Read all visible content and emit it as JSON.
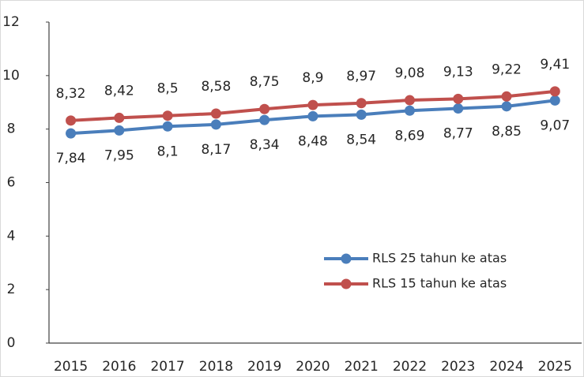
{
  "chart_data": {
    "type": "line",
    "categories": [
      "2015",
      "2016",
      "2017",
      "2018",
      "2019",
      "2020",
      "2021",
      "2022",
      "2023",
      "2024",
      "2025"
    ],
    "series": [
      {
        "name": "RLS 25 tahun ke atas",
        "color": "#4a7ebb",
        "values": [
          7.84,
          7.95,
          8.1,
          8.17,
          8.34,
          8.48,
          8.54,
          8.69,
          8.77,
          8.85,
          9.07
        ],
        "value_labels": [
          "7,84",
          "7,95",
          "8,1",
          "8,17",
          "8,34",
          "8,48",
          "8,54",
          "8,69",
          "8,77",
          "8,85",
          "9,07"
        ]
      },
      {
        "name": "RLS 15 tahun ke atas",
        "color": "#c0504d",
        "values": [
          8.32,
          8.42,
          8.5,
          8.58,
          8.75,
          8.9,
          8.97,
          9.08,
          9.13,
          9.22,
          9.41
        ],
        "value_labels": [
          "8,32",
          "8,42",
          "8,5",
          "8,58",
          "8,75",
          "8,9",
          "8,97",
          "9,08",
          "9,13",
          "9,22",
          "9,41"
        ]
      }
    ],
    "ylim": [
      0,
      12
    ],
    "yticks": [
      0,
      2,
      4,
      6,
      8,
      10,
      12
    ],
    "grid": false,
    "legend": "lower right"
  }
}
